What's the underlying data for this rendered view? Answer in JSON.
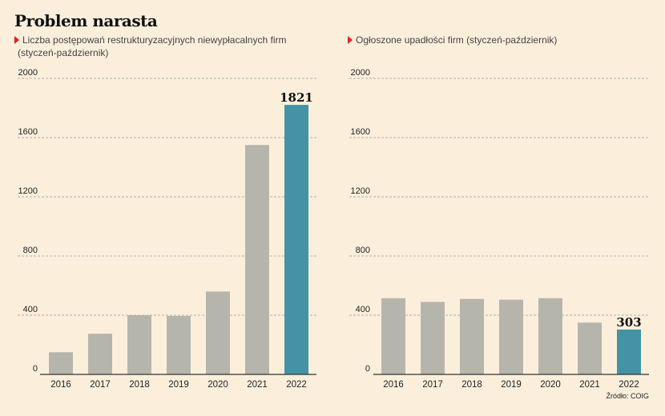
{
  "title": "Problem narasta",
  "source": "Źródło: COIG",
  "colors": {
    "bar": "#b6b5ab",
    "highlight": "#4393a5",
    "grid": "#9a9a9a",
    "background": "#fbefdc",
    "marker": "#e41e26"
  },
  "chart_data": [
    {
      "type": "bar",
      "title": "Liczba postępowań restrukturyzacyjnych niewypłacalnych firm (styczeń-październik)",
      "title_lines": [
        "Liczba postępowań restrukturyzacyjnych niewypłacalnych firm",
        "(styczeń-październik)"
      ],
      "categories": [
        "2016",
        "2017",
        "2018",
        "2019",
        "2020",
        "2021",
        "2022"
      ],
      "values": [
        150,
        275,
        400,
        395,
        560,
        1550,
        1821
      ],
      "highlight_index": 6,
      "value_label": "1821",
      "ylim": [
        0,
        2000
      ],
      "yticks": [
        "0",
        "400",
        "800",
        "1200",
        "1600",
        "2000"
      ],
      "grid": true
    },
    {
      "type": "bar",
      "title": "Ogłoszone upadłości firm (styczeń-październik)",
      "title_lines": [
        "Ogłoszone upadłości firm (styczeń-październik)"
      ],
      "categories": [
        "2016",
        "2017",
        "2018",
        "2019",
        "2020",
        "2021",
        "2022"
      ],
      "values": [
        515,
        490,
        510,
        505,
        515,
        350,
        303
      ],
      "highlight_index": 6,
      "value_label": "303",
      "ylim": [
        0,
        2000
      ],
      "yticks": [
        "0",
        "400",
        "800",
        "1200",
        "1600",
        "2000"
      ],
      "grid": true
    }
  ]
}
